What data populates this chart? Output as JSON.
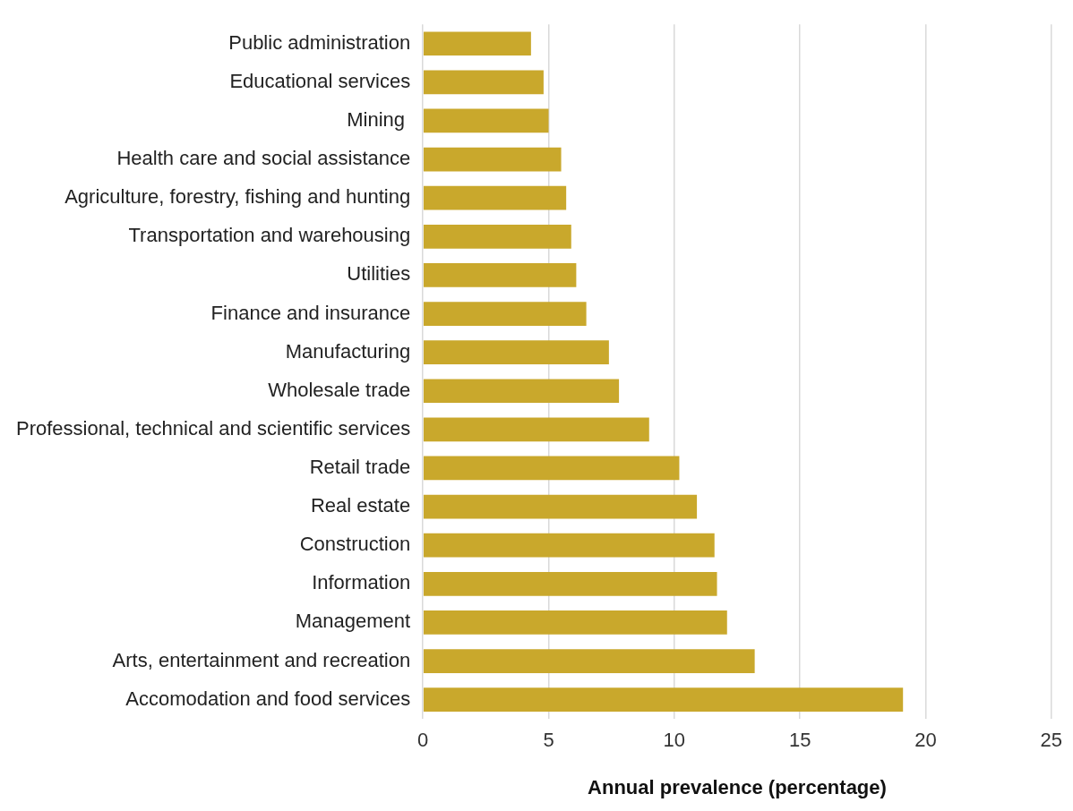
{
  "chart_data": {
    "type": "bar",
    "orientation": "horizontal",
    "xlabel": "Annual prevalence (percentage)",
    "categories": [
      "Public administration",
      "Educational services",
      "Mining ",
      "Health care and social assistance",
      "Agriculture, forestry, fishing and hunting",
      "Transportation and warehousing",
      "Utilities",
      "Finance and insurance",
      "Manufacturing",
      "Wholesale trade",
      "Professional, technical and scientific services",
      "Retail trade",
      "Real estate",
      "Construction",
      "Information",
      "Management",
      "Arts, entertainment and recreation",
      "Accomodation and food services"
    ],
    "values": [
      4.3,
      4.8,
      5.0,
      5.5,
      5.7,
      5.9,
      6.1,
      6.5,
      7.4,
      7.8,
      9.0,
      10.2,
      10.9,
      11.6,
      11.7,
      12.1,
      13.2,
      19.1
    ],
    "color": "#c9a82c",
    "xlim": [
      0,
      25
    ],
    "xticks": [
      0,
      5,
      10,
      15,
      20,
      25
    ],
    "grid": "x",
    "legend": false
  }
}
